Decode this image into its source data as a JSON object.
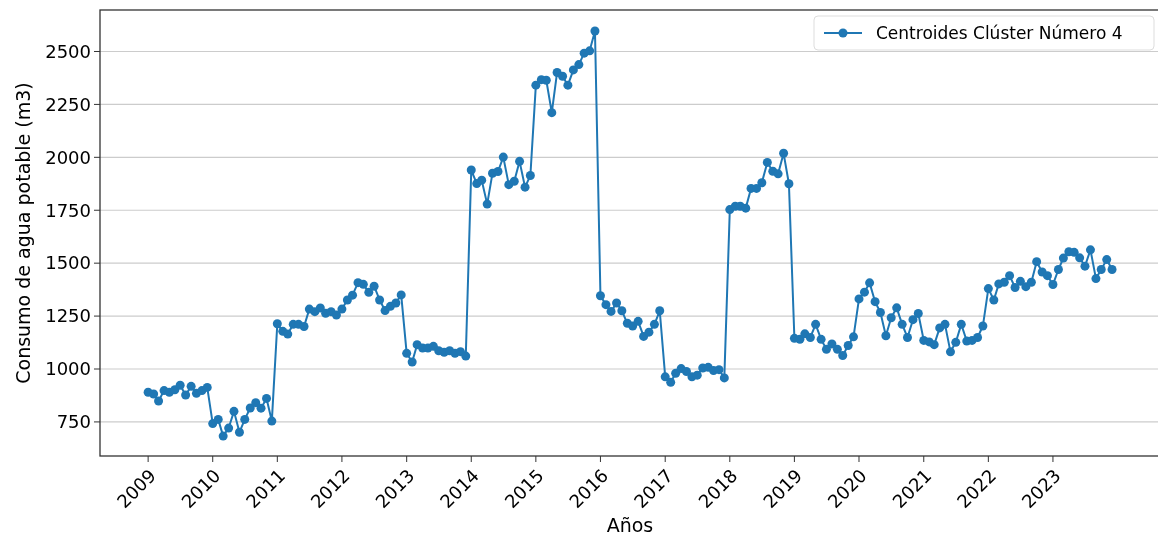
{
  "chart_data": {
    "type": "line",
    "xlabel": "Años",
    "ylabel": "Consumo de agua potable (m3)",
    "x": [
      "2009-01",
      "2009-02",
      "2009-03",
      "2009-04",
      "2009-05",
      "2009-06",
      "2009-07",
      "2009-08",
      "2009-09",
      "2009-10",
      "2009-11",
      "2009-12",
      "2010-01",
      "2010-02",
      "2010-03",
      "2010-04",
      "2010-05",
      "2010-06",
      "2010-07",
      "2010-08",
      "2010-09",
      "2010-10",
      "2010-11",
      "2010-12",
      "2011-01",
      "2011-02",
      "2011-03",
      "2011-04",
      "2011-05",
      "2011-06",
      "2011-07",
      "2011-08",
      "2011-09",
      "2011-10",
      "2011-11",
      "2011-12",
      "2012-01",
      "2012-02",
      "2012-03",
      "2012-04",
      "2012-05",
      "2012-06",
      "2012-07",
      "2012-08",
      "2012-09",
      "2012-10",
      "2012-11",
      "2012-12",
      "2013-01",
      "2013-02",
      "2013-03",
      "2013-04",
      "2013-05",
      "2013-06",
      "2013-07",
      "2013-08",
      "2013-09",
      "2013-10",
      "2013-11",
      "2013-12",
      "2014-01",
      "2014-02",
      "2014-03",
      "2014-04",
      "2014-05",
      "2014-06",
      "2014-07",
      "2014-08",
      "2014-09",
      "2014-10",
      "2014-11",
      "2014-12",
      "2015-01",
      "2015-02",
      "2015-03",
      "2015-04",
      "2015-05",
      "2015-06",
      "2015-07",
      "2015-08",
      "2015-09",
      "2015-10",
      "2015-11",
      "2015-12",
      "2016-01",
      "2016-02",
      "2016-03",
      "2016-04",
      "2016-05",
      "2016-06",
      "2016-07",
      "2016-08",
      "2016-09",
      "2016-10",
      "2016-11",
      "2016-12",
      "2017-01",
      "2017-02",
      "2017-03",
      "2017-04",
      "2017-05",
      "2017-06",
      "2017-07",
      "2017-08",
      "2017-09",
      "2017-10",
      "2017-11",
      "2017-12",
      "2018-01",
      "2018-02",
      "2018-03",
      "2018-04",
      "2018-05",
      "2018-06",
      "2018-07",
      "2018-08",
      "2018-09",
      "2018-10",
      "2018-11",
      "2018-12",
      "2019-01",
      "2019-02",
      "2019-03",
      "2019-04",
      "2019-05",
      "2019-06",
      "2019-07",
      "2019-08",
      "2019-09",
      "2019-10",
      "2019-11",
      "2019-12",
      "2020-01",
      "2020-02",
      "2020-03",
      "2020-04",
      "2020-05",
      "2020-06",
      "2020-07",
      "2020-08",
      "2020-09",
      "2020-10",
      "2020-11",
      "2020-12",
      "2021-01",
      "2021-02",
      "2021-03",
      "2021-04",
      "2021-05",
      "2021-06",
      "2021-07",
      "2021-08",
      "2021-09",
      "2021-10",
      "2021-11",
      "2021-12",
      "2022-01",
      "2022-02",
      "2022-03",
      "2022-04",
      "2022-05",
      "2022-06",
      "2022-07",
      "2022-08",
      "2022-09",
      "2022-10",
      "2022-11",
      "2022-12",
      "2023-01",
      "2023-02",
      "2023-03",
      "2023-04",
      "2023-05",
      "2023-06",
      "2023-07",
      "2023-08",
      "2023-09",
      "2023-10",
      "2023-11",
      "2023-12"
    ],
    "series": [
      {
        "name": "Centroides Clúster Número 4",
        "color": "#1f77b4",
        "values": [
          890,
          882,
          849,
          898,
          890,
          902,
          923,
          877,
          918,
          885,
          898,
          913,
          742,
          762,
          683,
          721,
          800,
          701,
          762,
          816,
          841,
          815,
          861,
          754,
          1214,
          1178,
          1165,
          1211,
          1211,
          1201,
          1283,
          1271,
          1288,
          1263,
          1271,
          1255,
          1283,
          1326,
          1349,
          1408,
          1400,
          1362,
          1391,
          1326,
          1276,
          1296,
          1312,
          1350,
          1074,
          1033,
          1115,
          1099,
          1099,
          1107,
          1086,
          1079,
          1086,
          1074,
          1082,
          1061,
          1940,
          1876,
          1892,
          1779,
          1925,
          1933,
          2001,
          1871,
          1887,
          1981,
          1859,
          1914,
          2341,
          2367,
          2364,
          2211,
          2401,
          2383,
          2341,
          2413,
          2438,
          2492,
          2503,
          2597,
          1346,
          1304,
          1272,
          1312,
          1275,
          1216,
          1203,
          1225,
          1154,
          1174,
          1211,
          1275,
          963,
          937,
          980,
          1002,
          988,
          963,
          971,
          1005,
          1008,
          993,
          997,
          958,
          1753,
          1769,
          1769,
          1760,
          1853,
          1853,
          1880,
          1976,
          1934,
          1922,
          2019,
          1875,
          1145,
          1140,
          1166,
          1149,
          1211,
          1140,
          1093,
          1118,
          1093,
          1064,
          1111,
          1152,
          1331,
          1363,
          1407,
          1318,
          1267,
          1157,
          1242,
          1289,
          1211,
          1149,
          1233,
          1262,
          1135,
          1128,
          1115,
          1194,
          1211,
          1081,
          1126,
          1211,
          1132,
          1135,
          1149,
          1203,
          1380,
          1326,
          1402,
          1410,
          1441,
          1385,
          1414,
          1389,
          1410,
          1507,
          1458,
          1441,
          1399,
          1470,
          1524,
          1554,
          1551,
          1525,
          1486,
          1563,
          1427,
          1470,
          1517,
          1470
        ]
      }
    ],
    "xlim": [
      "2008-04-04",
      "2024-08-28"
    ],
    "xticks": [
      {
        "value": "2009",
        "label": "2009"
      },
      {
        "value": "2010",
        "label": "2010"
      },
      {
        "value": "2011",
        "label": "2011"
      },
      {
        "value": "2012",
        "label": "2012"
      },
      {
        "value": "2013",
        "label": "2013"
      },
      {
        "value": "2014",
        "label": "2014"
      },
      {
        "value": "2015",
        "label": "2015"
      },
      {
        "value": "2016",
        "label": "2016"
      },
      {
        "value": "2017",
        "label": "2017"
      },
      {
        "value": "2018",
        "label": "2018"
      },
      {
        "value": "2019",
        "label": "2019"
      },
      {
        "value": "2020",
        "label": "2020"
      },
      {
        "value": "2021",
        "label": "2021"
      },
      {
        "value": "2022",
        "label": "2022"
      },
      {
        "value": "2023",
        "label": "2023"
      }
    ],
    "ylim": [
      589,
      2696
    ],
    "yticks": [
      750,
      1000,
      1250,
      1500,
      1750,
      2000,
      2250,
      2500
    ],
    "grid": "y",
    "legend": "top right",
    "marker": "circle",
    "line_style": "solid"
  }
}
